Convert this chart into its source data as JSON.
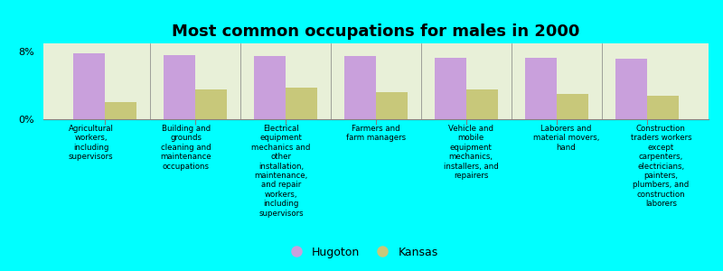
{
  "title": "Most common occupations for males in 2000",
  "categories": [
    "Agricultural\nworkers,\nincluding\nsupervisors",
    "Building and\ngrounds\ncleaning and\nmaintenance\noccupations",
    "Electrical\nequipment\nmechanics and\nother\ninstallation,\nmaintenance,\nand repair\nworkers,\nincluding\nsupervisors",
    "Farmers and\nfarm managers",
    "Vehicle and\nmobile\nequipment\nmechanics,\ninstallers, and\nrepairers",
    "Laborers and\nmaterial movers,\nhand",
    "Construction\ntraders workers\nexcept\ncarpenters,\nelectricians,\npainters,\nplumbers, and\nconstruction\nlaborers"
  ],
  "hugoton_values": [
    7.8,
    7.6,
    7.5,
    7.5,
    7.3,
    7.3,
    7.2
  ],
  "kansas_values": [
    2.0,
    3.5,
    3.8,
    3.2,
    3.5,
    3.0,
    2.8
  ],
  "hugoton_color": "#c9a0dc",
  "kansas_color": "#c8c87a",
  "background_color": "#00ffff",
  "plot_area_color": "#e8f0d8",
  "ylim": [
    0,
    9
  ],
  "yticks": [
    0,
    8
  ],
  "ytick_labels": [
    "0%",
    "8%"
  ],
  "title_fontsize": 13,
  "legend_labels": [
    "Hugoton",
    "Kansas"
  ],
  "bar_width": 0.35
}
